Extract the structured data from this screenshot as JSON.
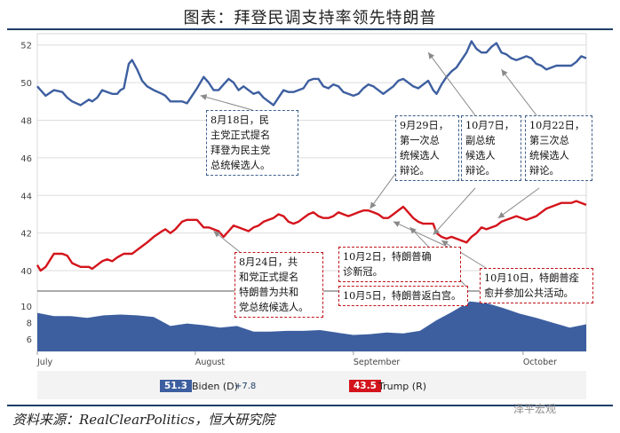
{
  "header": {
    "title": "图表：拜登民调支持率领先特朗普"
  },
  "footer": {
    "source": "资料来源：RealClearPolitics，恒大研究院",
    "watermark": "泽平宏观"
  },
  "colors": {
    "biden": "#3d5fa0",
    "trump": "#d4141c",
    "spread": "#3d5fa0",
    "annotation_blue": "#3e5f8a",
    "annotation_red": "#c0141b"
  },
  "chart_data": {
    "type": "line",
    "title": "图表：拜登民调支持率领先特朗普",
    "x_axis": {
      "months": [
        "July",
        "August",
        "September",
        "October"
      ],
      "start": "2020-07-01",
      "end": "2020-10-31"
    },
    "main_panel": {
      "ylim": [
        39.2,
        52.6
      ],
      "yticks": [
        40,
        42,
        44,
        46,
        48,
        50,
        52
      ],
      "series": [
        {
          "name": "Biden (D)",
          "color": "#3d5fa0",
          "x": [
            0,
            2,
            5,
            10,
            15,
            18,
            21,
            26,
            31,
            33,
            36,
            39,
            42,
            45,
            48,
            50,
            52,
            55,
            57,
            60,
            63,
            66,
            70,
            75,
            77,
            80,
            83,
            87,
            90,
            93,
            96,
            100,
            103,
            106,
            109,
            112,
            115,
            118,
            121,
            124,
            127,
            130,
            133,
            136,
            139,
            142,
            145,
            148,
            151,
            154,
            157,
            160,
            163,
            166,
            169,
            172,
            175,
            178,
            181,
            184,
            187,
            190,
            193,
            196,
            199,
            202,
            205,
            208,
            211,
            214,
            217,
            220,
            223,
            226,
            229,
            232,
            235,
            238,
            240,
            243,
            246,
            249,
            252,
            255,
            258,
            261,
            264,
            267,
            270,
            273,
            276,
            279,
            282,
            285,
            288,
            291,
            294,
            297,
            300,
            303,
            306,
            309,
            312,
            315,
            318,
            321,
            324,
            327,
            330
          ],
          "values": [
            49.8,
            49.6,
            49.3,
            49.6,
            49.5,
            49.2,
            49.0,
            48.8,
            49.1,
            49.0,
            49.2,
            49.6,
            49.5,
            49.4,
            49.4,
            49.6,
            49.7,
            51.0,
            51.2,
            50.7,
            50.1,
            49.8,
            49.6,
            49.4,
            49.3,
            49.0,
            49.0,
            49.0,
            48.9,
            49.3,
            49.7,
            50.3,
            50.0,
            49.6,
            49.6,
            49.9,
            50.2,
            50.0,
            49.6,
            49.8,
            49.6,
            49.4,
            49.5,
            49.2,
            49.0,
            48.8,
            49.2,
            49.6,
            49.5,
            49.5,
            49.6,
            49.7,
            50.1,
            50.2,
            50.2,
            49.8,
            49.7,
            49.9,
            49.8,
            49.5,
            49.4,
            49.3,
            49.4,
            49.7,
            49.9,
            49.8,
            49.6,
            49.4,
            49.6,
            49.8,
            50.1,
            50.2,
            50.0,
            49.8,
            49.7,
            49.9,
            50.1,
            49.6,
            49.4,
            49.9,
            50.3,
            50.6,
            50.8,
            51.2,
            51.6,
            52.2,
            51.8,
            51.6,
            51.6,
            51.9,
            52.1,
            51.6,
            51.5,
            51.3,
            51.2,
            51.3,
            51.4,
            51.3,
            51.0,
            50.9,
            50.7,
            50.8,
            50.9,
            50.9,
            50.9,
            50.9,
            51.1,
            51.4,
            51.3
          ]
        },
        {
          "name": "Trump (R)",
          "color": "#d4141c",
          "x": [
            0,
            2,
            5,
            10,
            15,
            18,
            21,
            26,
            31,
            33,
            36,
            39,
            42,
            45,
            48,
            50,
            52,
            55,
            57,
            60,
            63,
            66,
            70,
            75,
            77,
            80,
            83,
            87,
            90,
            93,
            96,
            100,
            103,
            106,
            109,
            112,
            115,
            118,
            121,
            124,
            127,
            130,
            133,
            136,
            139,
            142,
            145,
            148,
            151,
            154,
            157,
            160,
            163,
            166,
            169,
            172,
            175,
            178,
            181,
            184,
            187,
            190,
            193,
            196,
            199,
            202,
            205,
            208,
            211,
            214,
            217,
            220,
            223,
            226,
            229,
            232,
            235,
            238,
            240,
            243,
            246,
            249,
            252,
            255,
            258,
            261,
            264,
            267,
            270,
            273,
            276,
            279,
            282,
            285,
            288,
            291,
            294,
            297,
            300,
            303,
            306,
            309,
            312,
            315,
            318,
            321,
            324,
            327,
            330
          ],
          "values": [
            40.3,
            40.0,
            40.2,
            40.9,
            40.9,
            40.8,
            40.4,
            40.2,
            40.2,
            40.1,
            40.3,
            40.5,
            40.6,
            40.5,
            40.7,
            40.8,
            40.9,
            40.9,
            40.9,
            41.1,
            41.3,
            41.5,
            41.8,
            42.1,
            42.2,
            42.0,
            42.2,
            42.6,
            42.7,
            42.7,
            42.7,
            42.3,
            42.3,
            42.2,
            42.1,
            41.8,
            42.1,
            42.4,
            42.3,
            42.2,
            42.1,
            42.3,
            42.4,
            42.6,
            42.7,
            42.8,
            43.0,
            42.9,
            42.6,
            42.5,
            42.6,
            42.8,
            43.0,
            43.1,
            42.9,
            42.8,
            42.8,
            42.9,
            43.1,
            43.0,
            42.9,
            43.0,
            43.1,
            43.2,
            43.2,
            43.1,
            43.0,
            42.8,
            42.8,
            43.0,
            43.2,
            43.4,
            43.1,
            42.8,
            42.6,
            42.5,
            42.5,
            42.5,
            42.0,
            41.8,
            41.7,
            41.8,
            41.7,
            41.6,
            41.5,
            41.8,
            42.0,
            42.3,
            42.2,
            42.3,
            42.4,
            42.6,
            42.7,
            42.8,
            42.9,
            42.8,
            42.7,
            42.8,
            42.9,
            43.1,
            43.3,
            43.4,
            43.5,
            43.6,
            43.6,
            43.6,
            43.7,
            43.6,
            43.5
          ]
        }
      ]
    },
    "spread_panel": {
      "name": "Biden lead (spread)",
      "ylim": [
        4.5,
        11
      ],
      "yticks": [
        6,
        8,
        10
      ],
      "x": [
        0,
        10,
        20,
        30,
        40,
        50,
        60,
        70,
        80,
        90,
        100,
        110,
        120,
        130,
        140,
        150,
        160,
        170,
        180,
        190,
        200,
        210,
        220,
        230,
        240,
        250,
        260,
        270,
        280,
        290,
        300,
        310,
        320,
        330
      ],
      "values": [
        9.2,
        8.8,
        8.8,
        8.6,
        8.9,
        9.0,
        8.9,
        8.7,
        7.6,
        7.9,
        7.7,
        7.4,
        7.6,
        6.9,
        6.9,
        7.0,
        7.0,
        7.1,
        6.8,
        6.5,
        6.6,
        6.8,
        6.7,
        7.0,
        8.3,
        9.4,
        10.6,
        10.4,
        9.8,
        9.1,
        8.6,
        8.0,
        7.4,
        7.8
      ]
    },
    "legend": [
      {
        "name": "Biden (D)",
        "value": "51.3",
        "change": "+7.8",
        "color": "#3d5fa0"
      },
      {
        "name": "Trump (R)",
        "value": "43.5",
        "change": "",
        "color": "#d4141c"
      }
    ],
    "annotations": [
      {
        "id": "ann-biden-nominee",
        "text": "8月18日，民\n主党正式提名\n拜登为民主党\n总统候选人。",
        "color": "blue",
        "target_x": 98,
        "target_y": 49.6
      },
      {
        "id": "ann-debate1",
        "text": "9月29日，\n第一次总\n统候选人\n辩论。",
        "color": "blue",
        "target_x": 200,
        "target_y": 43.3
      },
      {
        "id": "ann-vp-debate",
        "text": "10月7日，\n副总统\n候选人\n辩论。",
        "color": "blue",
        "target_x": 238,
        "target_y": 42.0
      },
      {
        "id": "ann-debate3",
        "text": "10月22日，\n第三次总\n统候选人\n辩论。",
        "color": "blue",
        "target_x": 291,
        "target_y": 42.9
      },
      {
        "id": "ann-trump-nominee",
        "text": "8月24日，共\n和党正式提名\n特朗普为共和\n党总统候选人。",
        "color": "red",
        "target_x": 106,
        "target_y": 42.2
      },
      {
        "id": "ann-covid",
        "text": "10月2日，特朗普确\n诊新冠。",
        "color": "red",
        "target_x": 214,
        "target_y": 42.8
      },
      {
        "id": "ann-return",
        "text": "10月5日，特朗普返白宫。",
        "color": "red",
        "target_x": 224,
        "target_y": 42.5
      },
      {
        "id": "ann-public",
        "text": "10月10日，特朗普痊\n愈并参加公共活动。",
        "color": "red",
        "target_x": 244,
        "target_y": 41.7
      }
    ]
  }
}
